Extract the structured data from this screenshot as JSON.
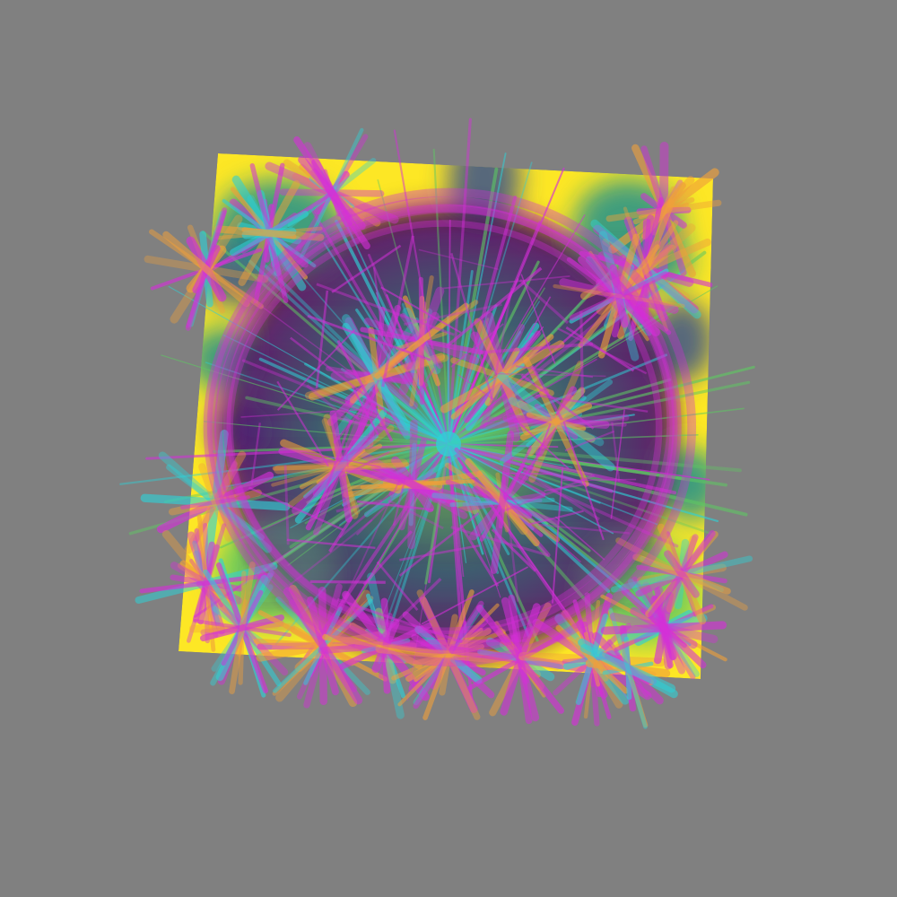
{
  "scene": {
    "background_color": "#808080",
    "palette": {
      "yellow": "#fde725",
      "green": "#5ec962",
      "teal": "#21918c",
      "navy": "#3b528b",
      "purple": "#440154",
      "magenta": "#d42fd8",
      "cyan": "#2fd0d6",
      "orange": "#f0a03a"
    }
  }
}
